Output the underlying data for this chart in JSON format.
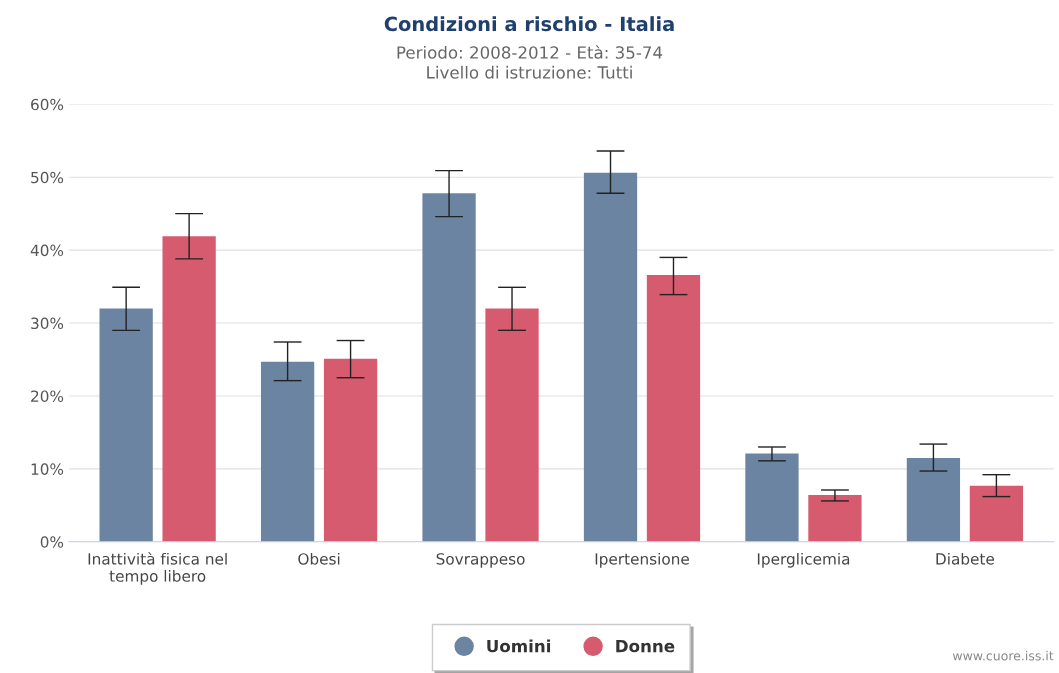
{
  "chart_data": {
    "type": "bar",
    "title": "Condizioni a rischio - Italia",
    "subtitle": "Periodo: 2008-2012 - Età: 35-74\nLivello di istruzione: Tutti",
    "categories": [
      "Inattività fisica nel\ntempo libero",
      "Obesi",
      "Sovrappeso",
      "Ipertensione",
      "Iperglicemia",
      "Diabete"
    ],
    "series": [
      {
        "name": "Uomini",
        "color": "#6a84a2",
        "values": [
          32.0,
          24.7,
          47.8,
          50.6,
          12.1,
          11.5
        ],
        "errors": [
          [
            29.0,
            34.9
          ],
          [
            22.1,
            27.4
          ],
          [
            44.6,
            50.9
          ],
          [
            47.8,
            53.6
          ],
          [
            11.1,
            13.0
          ],
          [
            9.7,
            13.4
          ]
        ]
      },
      {
        "name": "Donne",
        "color": "#d65b6f",
        "values": [
          41.9,
          25.1,
          32.0,
          36.6,
          6.4,
          7.7
        ],
        "errors": [
          [
            38.8,
            45.0
          ],
          [
            22.5,
            27.6
          ],
          [
            29.0,
            34.9
          ],
          [
            33.9,
            39.0
          ],
          [
            5.6,
            7.1
          ],
          [
            6.2,
            9.2
          ]
        ]
      }
    ],
    "ylim": [
      0,
      60
    ],
    "yticks": [
      {
        "value": 0,
        "label": "0%"
      },
      {
        "value": 10,
        "label": "10%"
      },
      {
        "value": 20,
        "label": "20%"
      },
      {
        "value": 30,
        "label": "30%"
      },
      {
        "value": 40,
        "label": "40%"
      },
      {
        "value": 50,
        "label": "50%"
      },
      {
        "value": 60,
        "label": "60%"
      }
    ],
    "grid": "y",
    "legend": "bottom",
    "annotations": [
      "www.cuore.iss.it"
    ]
  }
}
